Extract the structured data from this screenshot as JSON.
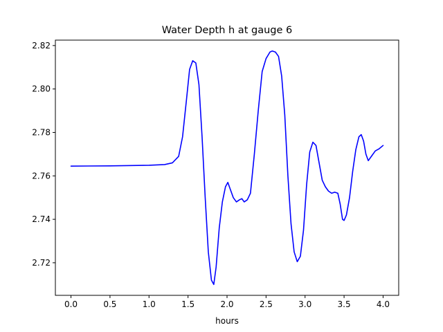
{
  "chart_data": {
    "type": "line",
    "title": "Water Depth h at gauge 6",
    "xlabel": "hours",
    "ylabel": "",
    "xlim": [
      -0.2,
      4.2
    ],
    "ylim": [
      2.705,
      2.8225
    ],
    "xticks": [
      0.0,
      0.5,
      1.0,
      1.5,
      2.0,
      2.5,
      3.0,
      3.5,
      4.0
    ],
    "xtick_labels": [
      "0.0",
      "0.5",
      "1.0",
      "1.5",
      "2.0",
      "2.5",
      "3.0",
      "3.5",
      "4.0"
    ],
    "yticks": [
      2.72,
      2.74,
      2.76,
      2.78,
      2.8,
      2.82
    ],
    "ytick_labels": [
      "2.72",
      "2.74",
      "2.76",
      "2.78",
      "2.80",
      "2.82"
    ],
    "grid": false,
    "legend": "none",
    "series": [
      {
        "color": "#0000ff",
        "x": [
          0.0,
          0.5,
          1.0,
          1.2,
          1.3,
          1.38,
          1.43,
          1.48,
          1.52,
          1.56,
          1.6,
          1.64,
          1.68,
          1.72,
          1.76,
          1.8,
          1.83,
          1.86,
          1.9,
          1.94,
          1.98,
          2.01,
          2.04,
          2.08,
          2.12,
          2.16,
          2.19,
          2.22,
          2.26,
          2.3,
          2.35,
          2.4,
          2.45,
          2.5,
          2.55,
          2.58,
          2.62,
          2.66,
          2.7,
          2.74,
          2.78,
          2.82,
          2.86,
          2.9,
          2.94,
          2.98,
          3.02,
          3.06,
          3.1,
          3.14,
          3.18,
          3.22,
          3.26,
          3.3,
          3.34,
          3.38,
          3.42,
          3.45,
          3.48,
          3.5,
          3.53,
          3.57,
          3.61,
          3.65,
          3.69,
          3.72,
          3.75,
          3.78,
          3.81,
          3.85,
          3.9,
          3.95,
          4.0
        ],
        "y": [
          2.7645,
          2.7646,
          2.7649,
          2.7652,
          2.766,
          2.769,
          2.778,
          2.795,
          2.809,
          2.813,
          2.812,
          2.802,
          2.778,
          2.75,
          2.725,
          2.712,
          2.71,
          2.718,
          2.736,
          2.748,
          2.755,
          2.757,
          2.754,
          2.75,
          2.748,
          2.749,
          2.7495,
          2.748,
          2.749,
          2.752,
          2.77,
          2.79,
          2.808,
          2.814,
          2.817,
          2.8175,
          2.817,
          2.815,
          2.806,
          2.788,
          2.76,
          2.738,
          2.725,
          2.7205,
          2.723,
          2.735,
          2.756,
          2.771,
          2.7755,
          2.774,
          2.766,
          2.758,
          2.755,
          2.753,
          2.752,
          2.7525,
          2.752,
          2.747,
          2.74,
          2.7395,
          2.742,
          2.75,
          2.762,
          2.772,
          2.778,
          2.779,
          2.776,
          2.77,
          2.767,
          2.769,
          2.7715,
          2.7725,
          2.774
        ]
      }
    ]
  }
}
